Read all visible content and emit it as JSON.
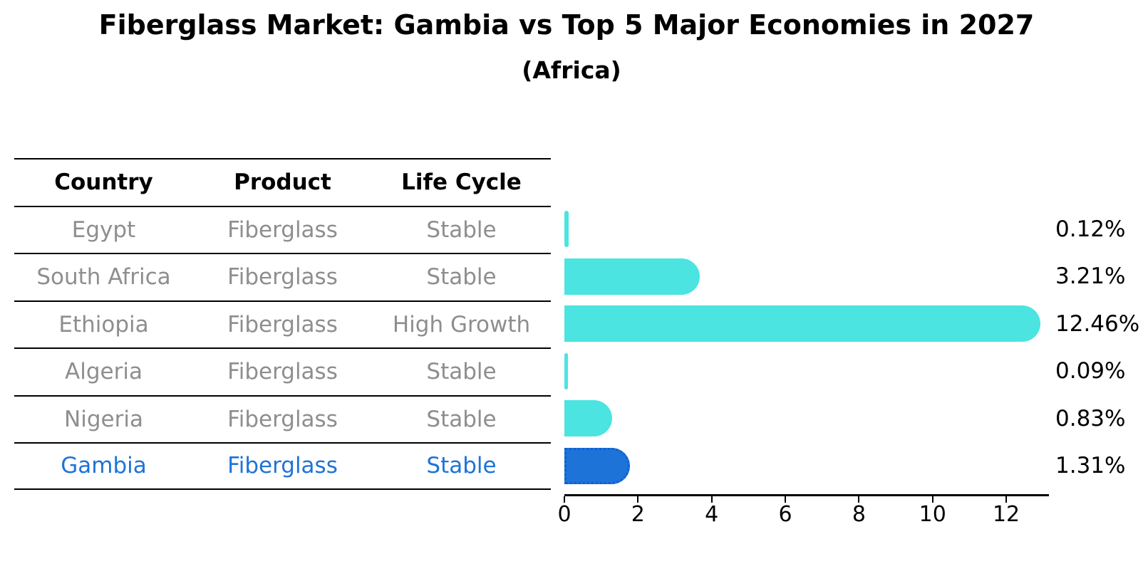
{
  "title": "Fiberglass Market: Gambia vs Top 5 Major Economies in 2027",
  "subtitle": "(Africa)",
  "table": {
    "headers": [
      "Country",
      "Product",
      "Life Cycle"
    ]
  },
  "chart_data": {
    "type": "bar",
    "orientation": "horizontal",
    "title": "Fiberglass Market: Gambia vs Top 5 Major Economies in 2027",
    "subtitle": "(Africa)",
    "xlabel": "",
    "ylabel": "",
    "xlim": [
      0,
      13.16
    ],
    "x_ticks": [
      0,
      2,
      4,
      6,
      8,
      10,
      12
    ],
    "grid": false,
    "legend": false,
    "rows": [
      {
        "country": "Egypt",
        "product": "Fiberglass",
        "life_cycle": "Stable",
        "value": 0.12,
        "value_label": "0.12%",
        "highlight": false
      },
      {
        "country": "South Africa",
        "product": "Fiberglass",
        "life_cycle": "Stable",
        "value": 3.21,
        "value_label": "3.21%",
        "highlight": false
      },
      {
        "country": "Ethiopia",
        "product": "Fiberglass",
        "life_cycle": "High Growth",
        "value": 12.46,
        "value_label": "12.46%",
        "highlight": false
      },
      {
        "country": "Algeria",
        "product": "Fiberglass",
        "life_cycle": "Stable",
        "value": 0.09,
        "value_label": "0.09%",
        "highlight": false
      },
      {
        "country": "Nigeria",
        "product": "Fiberglass",
        "life_cycle": "Stable",
        "value": 0.83,
        "value_label": "0.83%",
        "highlight": false
      },
      {
        "country": "Gambia",
        "product": "Fiberglass",
        "life_cycle": "Stable",
        "value": 1.31,
        "value_label": "1.31%",
        "highlight": true
      }
    ],
    "colors": {
      "bar": "#4be4e0",
      "highlight_bar": "#1e73d8",
      "highlight_bar_border": "#0d5fd4",
      "highlight_text": "#1e73d8",
      "row_text": "#8e8e8e",
      "header_text": "#000000",
      "value_text": "#000000",
      "axis": "#000000"
    }
  }
}
